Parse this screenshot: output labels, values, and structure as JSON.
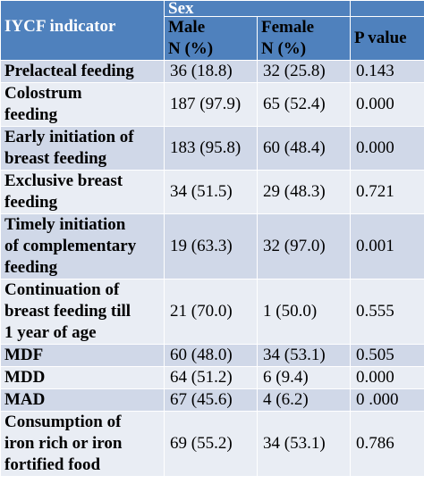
{
  "table": {
    "headers": {
      "indicator": "IYCF indicator",
      "group": "Sex",
      "male": "Male",
      "male_unit": "N (%)",
      "female": "Female",
      "female_unit": "N (%)",
      "p_value": "P value"
    },
    "rows": [
      {
        "lines": [
          "Prelacteal feeding"
        ],
        "male": "36 (18.8)",
        "female": "32 (25.8)",
        "p": "0.143"
      },
      {
        "lines": [
          "Colostrum",
          "feeding"
        ],
        "male": "187 (97.9)",
        "female": "65 (52.4)",
        "p": "0.000"
      },
      {
        "lines": [
          "Early initiation of",
          "breast feeding"
        ],
        "male": "183 (95.8)",
        "female": "60 (48.4)",
        "p": "0.000"
      },
      {
        "lines": [
          "Exclusive breast",
          "feeding"
        ],
        "male": "34 (51.5)",
        "female": "29 (48.3)",
        "p": "0.721"
      },
      {
        "lines": [
          "Timely initiation",
          "of complementary",
          "feeding"
        ],
        "male": "19 (63.3)",
        "female": "32 (97.0)",
        "p": "0.001"
      },
      {
        "lines": [
          "Continuation of",
          "breast feeding till",
          "1 year of age"
        ],
        "male": "21 (70.0)",
        "female": "1 (50.0)",
        "p": "0.555"
      },
      {
        "lines": [
          "MDF"
        ],
        "male": "60 (48.0)",
        "female": "34 (53.1)",
        "p": "0.505"
      },
      {
        "lines": [
          "MDD"
        ],
        "male": "64 (51.2)",
        "female": "6 (9.4)",
        "p": "0.000"
      },
      {
        "lines": [
          "MAD"
        ],
        "male": "67 (45.6)",
        "female": "4 (6.2)",
        "p": "0 .000"
      },
      {
        "lines": [
          "Consumption of",
          "iron rich or iron",
          "fortified food"
        ],
        "male": "69 (55.2)",
        "female": "34 (53.1)",
        "p": "0.786"
      }
    ]
  }
}
